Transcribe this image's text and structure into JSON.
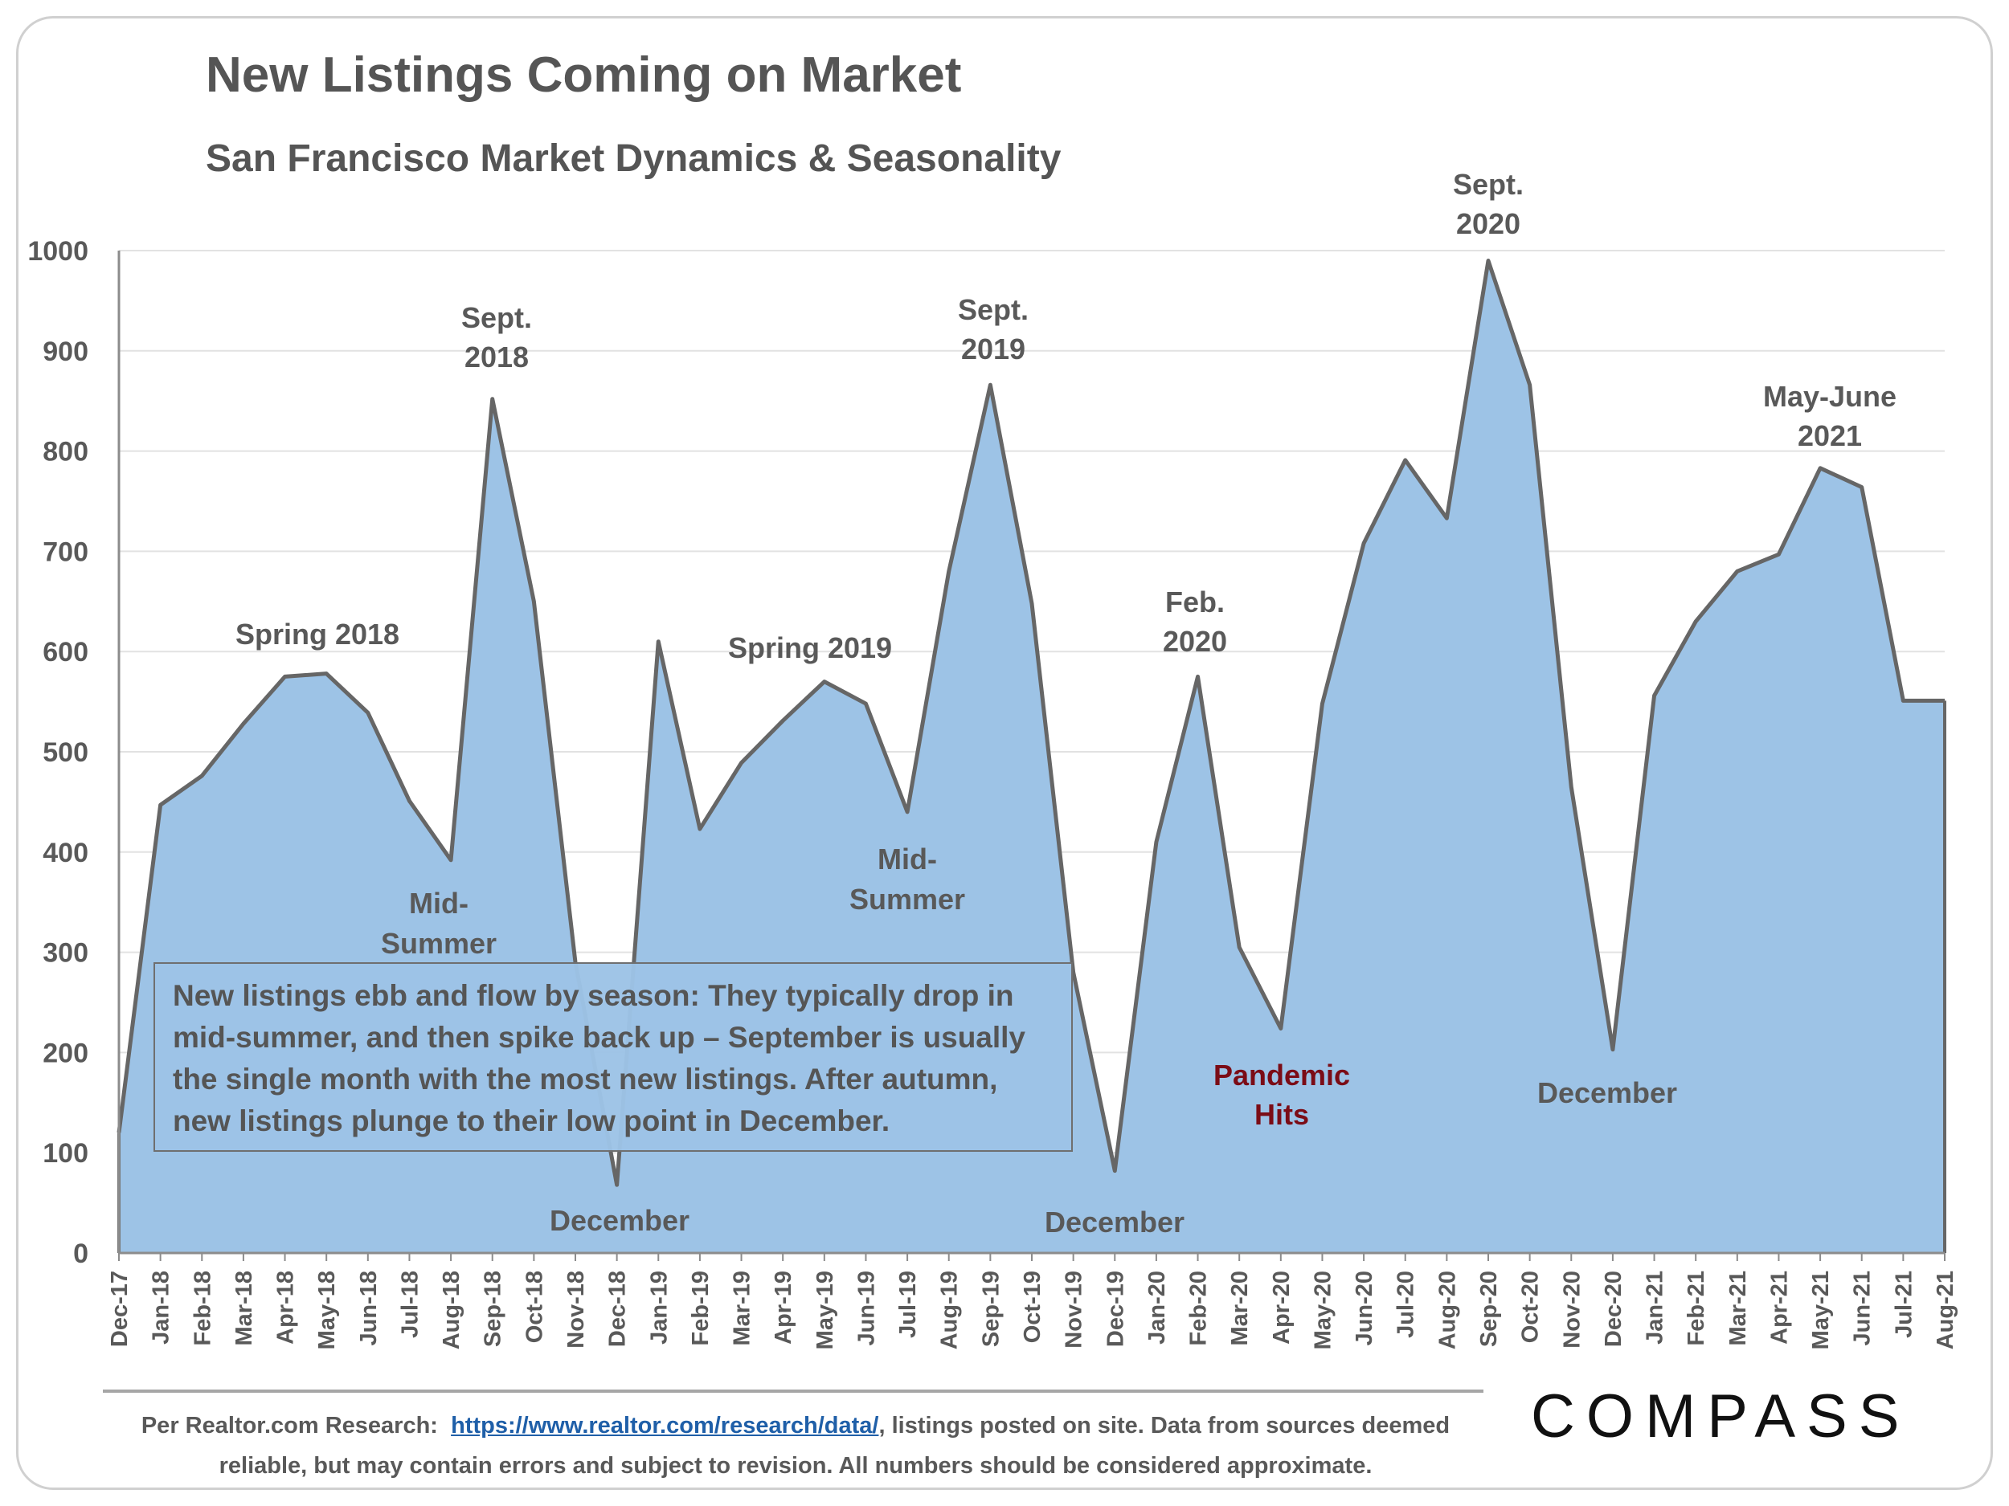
{
  "header": {
    "title": "New Listings Coming on Market",
    "subtitle": "San Francisco Market Dynamics & Seasonality"
  },
  "chart_data": {
    "type": "area",
    "title": "New Listings Coming on Market",
    "subtitle": "San Francisco Market Dynamics & Seasonality",
    "xlabel": "",
    "ylabel": "",
    "ylim": [
      0,
      1000
    ],
    "yticks": [
      0,
      100,
      200,
      300,
      400,
      500,
      600,
      700,
      800,
      900,
      1000
    ],
    "grid": true,
    "categories": [
      "Dec-17",
      "Jan-18",
      "Feb-18",
      "Mar-18",
      "Apr-18",
      "May-18",
      "Jun-18",
      "Jul-18",
      "Aug-18",
      "Sep-18",
      "Oct-18",
      "Nov-18",
      "Dec-18",
      "Jan-19",
      "Feb-19",
      "Mar-19",
      "Apr-19",
      "May-19",
      "Jun-19",
      "Jul-19",
      "Aug-19",
      "Sep-19",
      "Oct-19",
      "Nov-19",
      "Dec-19",
      "Jan-20",
      "Feb-20",
      "Mar-20",
      "Apr-20",
      "May-20",
      "Jun-20",
      "Jul-20",
      "Aug-20",
      "Sep-20",
      "Oct-20",
      "Nov-20",
      "Dec-20",
      "Jan-21",
      "Feb-21",
      "Mar-21",
      "Apr-21",
      "May-21",
      "Jun-21",
      "Jul-21",
      "Aug-21"
    ],
    "series": [
      {
        "name": "New Listings",
        "fill_color": "#9dc3e6",
        "line_color": "#666666",
        "values": [
          120,
          447,
          476,
          528,
          575,
          578,
          539,
          451,
          392,
          852,
          650,
          290,
          68,
          610,
          423,
          489,
          531,
          570,
          548,
          440,
          680,
          866,
          648,
          280,
          82,
          410,
          575,
          305,
          224,
          548,
          708,
          791,
          733,
          990,
          866,
          465,
          203,
          556,
          630,
          680,
          697,
          783,
          764,
          551,
          551
        ]
      }
    ],
    "annotations": [
      {
        "text_lines": [
          "Spring 2018"
        ],
        "color": "#595959"
      },
      {
        "text_lines": [
          "Sept.",
          "2018"
        ],
        "color": "#595959"
      },
      {
        "text_lines": [
          "Mid-",
          "Summer"
        ],
        "color": "#595959"
      },
      {
        "text_lines": [
          "December"
        ],
        "color": "#595959"
      },
      {
        "text_lines": [
          "Spring 2019"
        ],
        "color": "#595959"
      },
      {
        "text_lines": [
          "Sept.",
          "2019"
        ],
        "color": "#595959"
      },
      {
        "text_lines": [
          "Mid-",
          "Summer"
        ],
        "color": "#595959"
      },
      {
        "text_lines": [
          "December"
        ],
        "color": "#595959"
      },
      {
        "text_lines": [
          "Feb.",
          "2020"
        ],
        "color": "#595959"
      },
      {
        "text_lines": [
          "Pandemic",
          "Hits"
        ],
        "color": "#7b0c16"
      },
      {
        "text_lines": [
          "Sept.",
          "2020"
        ],
        "color": "#595959"
      },
      {
        "text_lines": [
          "December"
        ],
        "color": "#595959"
      },
      {
        "text_lines": [
          "May-June",
          "2021"
        ],
        "color": "#595959"
      }
    ]
  },
  "callout": {
    "text": "New listings ebb and flow by season: They typically drop in mid-summer, and then spike back up – September is usually the single month with the most new listings.  After autumn, new listings plunge to their low point in December."
  },
  "footer": {
    "prefix": "Per Realtor.com Research:",
    "link": "https://www.realtor.com/research/data/",
    "suffix": ", listings posted on site. Data from sources deemed reliable, but may contain errors and subject to revision. All numbers should be considered approximate."
  },
  "logo": {
    "text": "COMPASS"
  }
}
